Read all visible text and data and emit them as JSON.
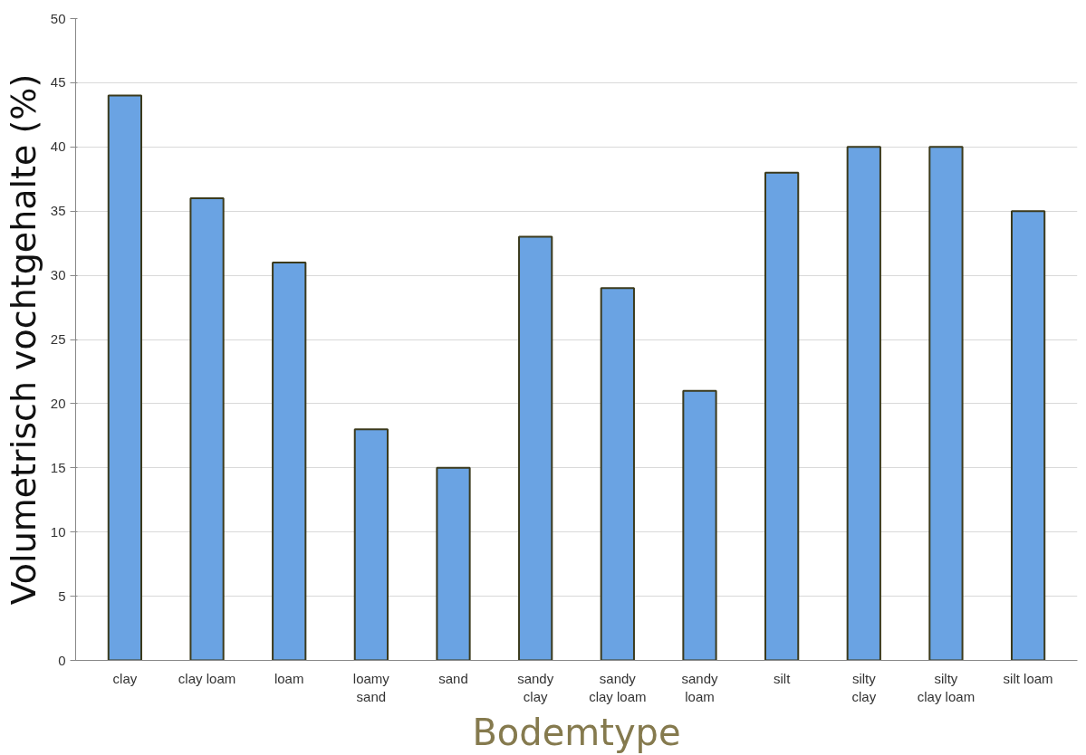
{
  "chart_data": {
    "type": "bar",
    "xlabel": "Bodemtype",
    "ylabel": "Volumetrisch vochtgehalte (%)",
    "categories": [
      "clay",
      "clay loam",
      "loam",
      "loamy sand",
      "sand",
      "sandy clay",
      "sandy clay loam",
      "sandy loam",
      "silt",
      "silty clay",
      "silty clay loam",
      "silt loam"
    ],
    "values": [
      44,
      36,
      31,
      18,
      15,
      33,
      29,
      21,
      38,
      40,
      40,
      35
    ],
    "color": "#6aa3e3",
    "ylim": [
      0,
      50
    ],
    "yticks": [
      0,
      5,
      10,
      15,
      20,
      25,
      30,
      35,
      40,
      45,
      50
    ],
    "grid": "y"
  }
}
